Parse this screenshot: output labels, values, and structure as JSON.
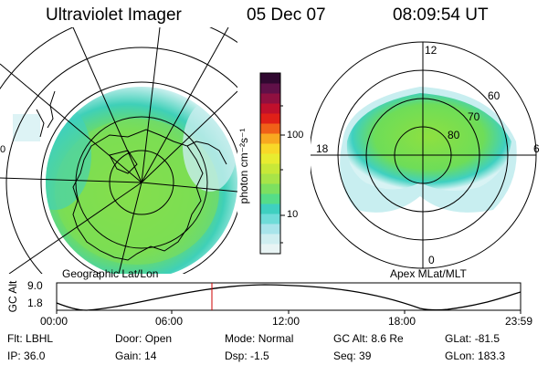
{
  "header": {
    "title": "Ultraviolet Imager",
    "date": "05 Dec 07",
    "time": "08:09:54 UT"
  },
  "left_panel": {
    "label": "Geographic Lat/Lon",
    "edge_mark": "0"
  },
  "right_panel": {
    "label": "Apex MLat/MLT",
    "mlt_labels": {
      "top": "12",
      "left": "18",
      "right": "6",
      "bottom": "0"
    },
    "lat_labels": [
      "60",
      "70",
      "80"
    ]
  },
  "colorbar": {
    "unit_label": "photon cm⁻²s⁻¹",
    "ticks": [
      "100",
      "10"
    ],
    "colors": [
      "#e8f4f4",
      "#cfeef0",
      "#a8e4ea",
      "#6fdcd8",
      "#3fd0c0",
      "#55dd88",
      "#7de060",
      "#a8e448",
      "#c8e838",
      "#e8ec30",
      "#f8d828",
      "#f8a820",
      "#f06018",
      "#e02018",
      "#c0102c",
      "#901040",
      "#601048",
      "#300830"
    ]
  },
  "timeline": {
    "ylabel": "GC Alt",
    "y_ticks": [
      "9.0",
      "1.8"
    ],
    "x_ticks": [
      "00:00",
      "06:00",
      "12:00",
      "18:00",
      "23:59"
    ],
    "marker_time": "08:09:54",
    "marker_color": "#cc0000"
  },
  "footer": {
    "row1": [
      {
        "label": "Flt:",
        "value": "LBHL"
      },
      {
        "label": "Door:",
        "value": "Open"
      },
      {
        "label": "Mode:",
        "value": "Normal"
      },
      {
        "label": "GC Alt:",
        "value": "8.6 Re"
      },
      {
        "label": "GLat:",
        "value": "-81.5"
      }
    ],
    "row2": [
      {
        "label": "IP:",
        "value": "36.0"
      },
      {
        "label": "Gain:",
        "value": "14"
      },
      {
        "label": "Dsp:",
        "value": "-1.5"
      },
      {
        "label": "Seq:",
        "value": "39"
      },
      {
        "label": "GLon:",
        "value": "183.3"
      }
    ]
  },
  "colors": {
    "aurora_outer": "#cdeff0",
    "aurora_mid": "#3fd0c0",
    "aurora_core": "#7ee04a"
  }
}
